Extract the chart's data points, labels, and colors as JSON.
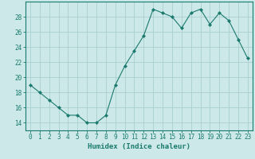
{
  "x": [
    0,
    1,
    2,
    3,
    4,
    5,
    6,
    7,
    8,
    9,
    10,
    11,
    12,
    13,
    14,
    15,
    16,
    17,
    18,
    19,
    20,
    21,
    22,
    23
  ],
  "y": [
    19,
    18,
    17,
    16,
    15,
    15,
    14,
    14,
    15,
    19,
    21.5,
    23.5,
    25.5,
    29,
    28.5,
    28,
    26.5,
    28.5,
    29,
    27,
    28.5,
    27.5,
    25,
    22.5
  ],
  "line_color": "#1a7a6e",
  "marker": "D",
  "marker_size": 2.0,
  "bg_color": "#cce8e8",
  "grid_color": "#aacece",
  "xlabel": "Humidex (Indice chaleur)",
  "xlim": [
    -0.5,
    23.5
  ],
  "ylim": [
    13,
    30
  ],
  "yticks": [
    14,
    16,
    18,
    20,
    22,
    24,
    26,
    28
  ],
  "xticks": [
    0,
    1,
    2,
    3,
    4,
    5,
    6,
    7,
    8,
    9,
    10,
    11,
    12,
    13,
    14,
    15,
    16,
    17,
    18,
    19,
    20,
    21,
    22,
    23
  ],
  "tick_color": "#1a7a6e",
  "label_color": "#1a7a6e",
  "tick_fontsize": 5.5,
  "xlabel_fontsize": 6.5
}
